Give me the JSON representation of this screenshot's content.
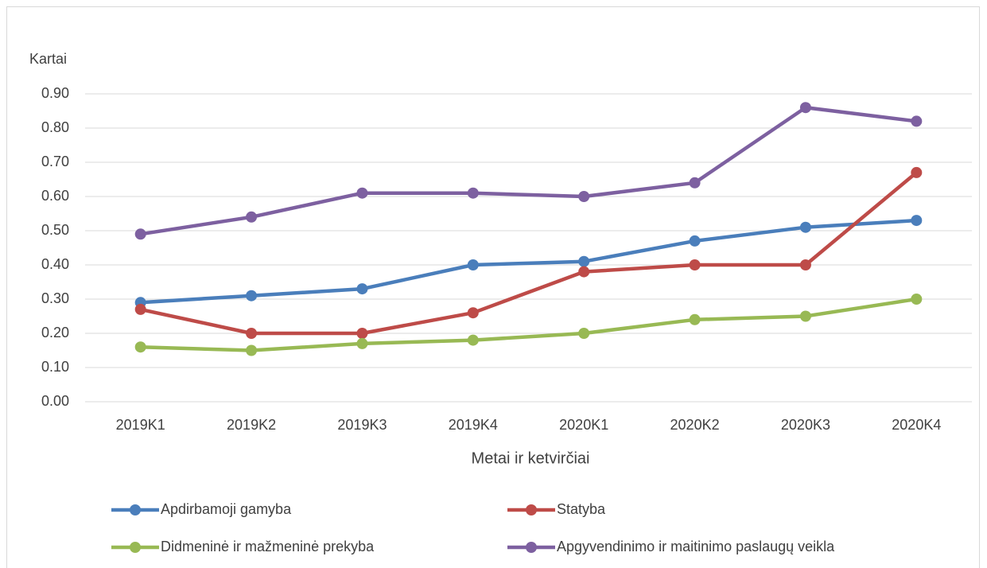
{
  "chart_data": {
    "type": "line",
    "y_label": "Kartai",
    "x_label": "Metai ir ketvirčiai",
    "categories": [
      "2019K1",
      "2019K2",
      "2019K3",
      "2019K4",
      "2020K1",
      "2020K2",
      "2020K3",
      "2020K4"
    ],
    "series": [
      {
        "name": "Apdirbamoji gamyba",
        "color": "#4a7ebb",
        "values": [
          0.29,
          0.31,
          0.33,
          0.4,
          0.41,
          0.47,
          0.51,
          0.53
        ]
      },
      {
        "name": "Statyba",
        "color": "#be4b48",
        "values": [
          0.27,
          0.2,
          0.2,
          0.26,
          0.38,
          0.4,
          0.4,
          0.67
        ]
      },
      {
        "name": "Didmeninė ir mažmeninė prekyba",
        "color": "#98b954",
        "values": [
          0.16,
          0.15,
          0.17,
          0.18,
          0.2,
          0.24,
          0.25,
          0.3
        ]
      },
      {
        "name": "Apgyvendinimo ir maitinimo paslaugų veikla",
        "color": "#7d60a0",
        "values": [
          0.49,
          0.54,
          0.61,
          0.61,
          0.6,
          0.64,
          0.86,
          0.82
        ]
      }
    ],
    "ylim": [
      0,
      0.9
    ],
    "yticks": [
      {
        "value": 0,
        "label": "0.00"
      },
      {
        "value": 0.1,
        "label": "0.10"
      },
      {
        "value": 0.2,
        "label": "0.20"
      },
      {
        "value": 0.3,
        "label": "0.30"
      },
      {
        "value": 0.4,
        "label": "0.40"
      },
      {
        "value": 0.5,
        "label": "0.50"
      },
      {
        "value": 0.6,
        "label": "0.60"
      },
      {
        "value": 0.7,
        "label": "0.70"
      },
      {
        "value": 0.8,
        "label": "0.80"
      },
      {
        "value": 0.9,
        "label": "0.90"
      }
    ],
    "grid": true,
    "legend": "bottom"
  }
}
